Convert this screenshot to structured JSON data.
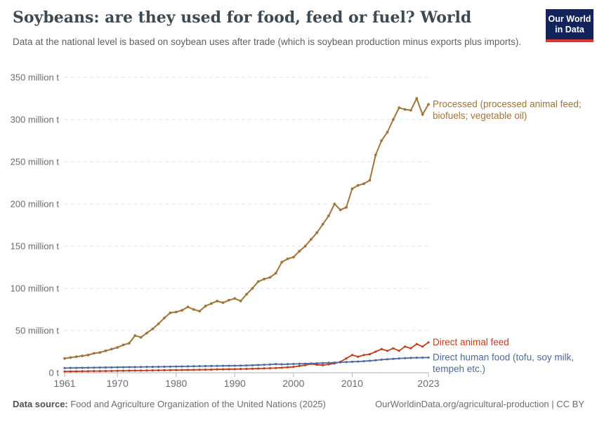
{
  "header": {
    "title": "Soybeans: are they used for food, feed or fuel? World",
    "subtitle": "Data at the national level is based on soybean uses after trade (which is soybean production minus exports plus imports).",
    "logo": {
      "line1": "Our World",
      "line2": "in Data"
    }
  },
  "footer": {
    "source_label": "Data source:",
    "source_text": " Food and Agriculture Organization of the United Nations (2025)",
    "attribution": "OurWorldinData.org/agricultural-production | CC BY"
  },
  "colors": {
    "processed": "#a1743a",
    "animal_feed": "#bf3d1c",
    "human_food": "#4c6a9f",
    "grid": "#e2e2e2",
    "axis": "#b3b3b3",
    "tick_label": "#6b6b6b",
    "logo_bg": "#13245a",
    "logo_accent": "#d93a2b"
  },
  "chart_data": {
    "type": "line",
    "title": "Soybeans: are they used for food, feed or fuel? World",
    "unit": "million t",
    "xlim": [
      1961,
      2023
    ],
    "ylim": [
      0,
      350
    ],
    "grid": "horizontal-dashed",
    "legend_position": "end-of-line-labels",
    "xticks": [
      1961,
      1970,
      1980,
      1990,
      2000,
      2010,
      2023
    ],
    "yticks": [
      0,
      50,
      100,
      150,
      200,
      250,
      300,
      350
    ],
    "ytick_labels": [
      "0 t",
      "50 million t",
      "100 million t",
      "150 million t",
      "200 million t",
      "250 million t",
      "300 million t",
      "350 million t"
    ],
    "x": [
      1961,
      1962,
      1963,
      1964,
      1965,
      1966,
      1967,
      1968,
      1969,
      1970,
      1971,
      1972,
      1973,
      1974,
      1975,
      1976,
      1977,
      1978,
      1979,
      1980,
      1981,
      1982,
      1983,
      1984,
      1985,
      1986,
      1987,
      1988,
      1989,
      1990,
      1991,
      1992,
      1993,
      1994,
      1995,
      1996,
      1997,
      1998,
      1999,
      2000,
      2001,
      2002,
      2003,
      2004,
      2005,
      2006,
      2007,
      2008,
      2009,
      2010,
      2011,
      2012,
      2013,
      2014,
      2015,
      2016,
      2017,
      2018,
      2019,
      2020,
      2021,
      2022,
      2023
    ],
    "series": [
      {
        "name": "Processed (processed animal feed; biofuels; vegetable oil)",
        "label_lines": [
          "Processed (processed animal feed;",
          "biofuels; vegetable oil)"
        ],
        "color_key": "processed",
        "values": [
          17,
          18,
          19,
          20,
          21,
          23,
          24,
          26,
          28,
          30,
          33,
          35,
          44,
          42,
          47,
          52,
          58,
          65,
          71,
          72,
          74,
          78,
          75,
          73,
          79,
          82,
          85,
          83,
          86,
          88,
          85,
          93,
          100,
          108,
          111,
          113,
          118,
          131,
          135,
          137,
          144,
          150,
          158,
          166,
          176,
          186,
          200,
          193,
          196,
          218,
          222,
          224,
          228,
          258,
          275,
          285,
          300,
          314,
          312,
          311,
          325,
          306,
          318
        ]
      },
      {
        "name": "Direct animal feed",
        "label_lines": [
          "Direct animal feed"
        ],
        "color_key": "animal_feed",
        "values": [
          1.5,
          1.6,
          1.7,
          1.8,
          1.9,
          2,
          2,
          2.1,
          2.2,
          2.3,
          2.4,
          2.5,
          2.6,
          2.6,
          2.7,
          2.8,
          2.9,
          3,
          3.1,
          3.2,
          3.3,
          3.4,
          3.5,
          3.6,
          3.7,
          3.8,
          4,
          4.1,
          4.2,
          4.3,
          4.5,
          4.6,
          4.8,
          5,
          5.2,
          5.4,
          5.6,
          6,
          6.5,
          7,
          8,
          9,
          10.5,
          9.5,
          9,
          10,
          11,
          13,
          17,
          21,
          19,
          21,
          22,
          25,
          28,
          26,
          29,
          26,
          31,
          29,
          34,
          31,
          36
        ]
      },
      {
        "name": "Direct human food (tofu, soy milk, tempeh etc.)",
        "label_lines": [
          "Direct human food (tofu, soy milk,",
          "tempeh etc.)"
        ],
        "color_key": "human_food",
        "values": [
          5.5,
          5.7,
          5.8,
          5.9,
          6,
          6.1,
          6.2,
          6.3,
          6.4,
          6.5,
          6.6,
          6.7,
          6.8,
          6.9,
          7,
          7,
          7.1,
          7.2,
          7.3,
          7.4,
          7.5,
          7.6,
          7.7,
          7.8,
          7.9,
          8,
          8.1,
          8.2,
          8.3,
          8.4,
          8.5,
          8.7,
          8.9,
          9.2,
          9.5,
          9.8,
          10.3,
          10,
          10.2,
          10.4,
          10.6,
          10.8,
          11,
          11.2,
          11.5,
          11.8,
          12.1,
          12.4,
          12.7,
          13,
          13.3,
          13.7,
          14.2,
          14.8,
          15.5,
          16,
          16.5,
          17,
          17.3,
          17.6,
          17.8,
          17.9,
          18
        ]
      }
    ]
  }
}
